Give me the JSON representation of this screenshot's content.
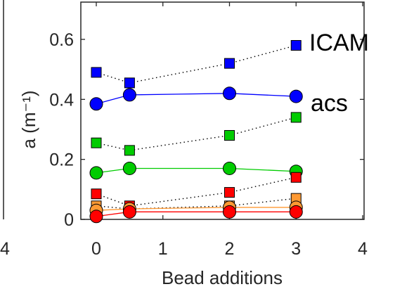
{
  "chart_data": {
    "type": "line",
    "title": "",
    "xlabel": "Bead additions",
    "ylabel": "a (m⁻¹)",
    "xlim": [
      0,
      4
    ],
    "ylim": [
      0,
      0.7
    ],
    "xticks": [
      "0",
      "1",
      "2",
      "3",
      "4"
    ],
    "xtick_values": [
      0,
      1,
      2,
      3,
      4
    ],
    "yticks": [
      "0",
      "0.2",
      "0.4",
      "0.6"
    ],
    "ytick_values": [
      0,
      0.2,
      0.4,
      0.6
    ],
    "left_panel_tick": "4",
    "grid": false,
    "annotations": [
      {
        "text": "ICAM",
        "near": "top-right",
        "marker": "square"
      },
      {
        "text": "acs",
        "near": "upper-right",
        "marker": "circle"
      }
    ],
    "x": [
      0,
      0.5,
      2,
      3
    ],
    "series": [
      {
        "color": "#0000ff",
        "marker": "square",
        "line": "dotted",
        "values": [
          0.49,
          0.455,
          0.52,
          0.58
        ]
      },
      {
        "color": "#0000ff",
        "marker": "circle",
        "line": "solid",
        "values": [
          0.385,
          0.415,
          0.42,
          0.41
        ]
      },
      {
        "color": "#00cc00",
        "marker": "square",
        "line": "dotted",
        "values": [
          0.255,
          0.23,
          0.28,
          0.34
        ]
      },
      {
        "color": "#00cc00",
        "marker": "circle",
        "line": "solid",
        "values": [
          0.155,
          0.17,
          0.17,
          0.16
        ]
      },
      {
        "color": "#ff0000",
        "marker": "square",
        "line": "dotted",
        "values": [
          0.085,
          0.045,
          0.09,
          0.14
        ]
      },
      {
        "color": "#ff9933",
        "marker": "square",
        "line": "dotted",
        "values": [
          0.045,
          0.035,
          0.045,
          0.07
        ]
      },
      {
        "color": "#ff9933",
        "marker": "circle",
        "line": "solid",
        "values": [
          0.03,
          0.035,
          0.04,
          0.04
        ]
      },
      {
        "color": "#ff0000",
        "marker": "circle",
        "line": "solid",
        "values": [
          0.01,
          0.025,
          0.025,
          0.025
        ]
      }
    ]
  }
}
